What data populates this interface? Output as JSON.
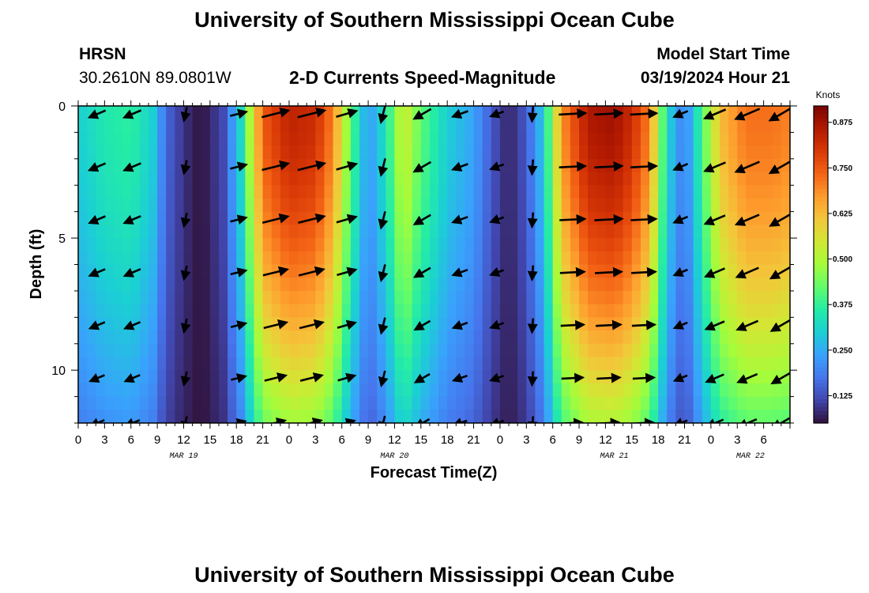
{
  "header": {
    "title_top": "University of Southern Mississippi Ocean Cube",
    "station": "HRSN",
    "coords": "30.2610N  89.0801W",
    "plot_title": "2-D Currents Speed-Magnitude",
    "model_start_label": "Model Start Time",
    "model_start_value": "03/19/2024 Hour 21",
    "title_bottom": "University of Southern Mississippi Ocean Cube"
  },
  "colors": {
    "ramp": [
      "#30123b",
      "#4145ab",
      "#4675ed",
      "#39a2fc",
      "#1bcfd4",
      "#24eca6",
      "#61fc6c",
      "#a4fc3b",
      "#d1e834",
      "#f3c63a",
      "#fe9b2d",
      "#f36315",
      "#d93806",
      "#b11901",
      "#7a0403"
    ]
  },
  "chart_data": {
    "type": "heatmap",
    "xlabel": "Forecast Time(Z)",
    "ylabel": "Depth (ft)",
    "colorbar_label": "Knots",
    "x_range_hours": [
      0,
      81
    ],
    "y_range": [
      0,
      12
    ],
    "y_ticks": [
      "0",
      "5",
      "10"
    ],
    "x_tick_labels": [
      "0",
      "3",
      "6",
      "9",
      "12",
      "15",
      "18",
      "21",
      "0",
      "3",
      "6",
      "9",
      "12",
      "15",
      "18",
      "21",
      "0",
      "3",
      "6",
      "9",
      "12",
      "15",
      "18",
      "21",
      "0",
      "3",
      "6"
    ],
    "month_labels": [
      {
        "label": "MAR 19",
        "hour": 12
      },
      {
        "label": "MAR 20",
        "hour": 36
      },
      {
        "label": "MAR 21",
        "hour": 61
      },
      {
        "label": "MAR 22",
        "hour": 76.5
      }
    ],
    "colorbar_ticks": [
      "0.125",
      "0.250",
      "0.375",
      "0.500",
      "0.625",
      "0.750",
      "0.875"
    ],
    "colorbar_range": [
      0.05,
      0.92
    ],
    "speed_profile": [
      {
        "hour": 0,
        "speed": 0.3
      },
      {
        "hour": 3,
        "speed": 0.35
      },
      {
        "hour": 6,
        "speed": 0.37
      },
      {
        "hour": 8.5,
        "speed": 0.3
      },
      {
        "hour": 10,
        "speed": 0.16
      },
      {
        "hour": 12,
        "speed": 0.09
      },
      {
        "hour": 14,
        "speed": 0.05
      },
      {
        "hour": 16.5,
        "speed": 0.12
      },
      {
        "hour": 18.5,
        "speed": 0.32
      },
      {
        "hour": 21,
        "speed": 0.75
      },
      {
        "hour": 24,
        "speed": 0.84
      },
      {
        "hour": 27,
        "speed": 0.82
      },
      {
        "hour": 29,
        "speed": 0.7
      },
      {
        "hour": 31,
        "speed": 0.42
      },
      {
        "hour": 33,
        "speed": 0.22
      },
      {
        "hour": 35,
        "speed": 0.34
      },
      {
        "hour": 37,
        "speed": 0.55
      },
      {
        "hour": 39,
        "speed": 0.42
      },
      {
        "hour": 42,
        "speed": 0.3
      },
      {
        "hour": 45,
        "speed": 0.24
      },
      {
        "hour": 47,
        "speed": 0.14
      },
      {
        "hour": 49,
        "speed": 0.07
      },
      {
        "hour": 51,
        "speed": 0.14
      },
      {
        "hour": 53,
        "speed": 0.3
      },
      {
        "hour": 55,
        "speed": 0.68
      },
      {
        "hour": 58,
        "speed": 0.86
      },
      {
        "hour": 61,
        "speed": 0.88
      },
      {
        "hour": 63,
        "speed": 0.82
      },
      {
        "hour": 65,
        "speed": 0.7
      },
      {
        "hour": 67,
        "speed": 0.32
      },
      {
        "hour": 69,
        "speed": 0.18
      },
      {
        "hour": 71,
        "speed": 0.4
      },
      {
        "hour": 73,
        "speed": 0.62
      },
      {
        "hour": 76,
        "speed": 0.72
      },
      {
        "hour": 79,
        "speed": 0.72
      },
      {
        "hour": 81,
        "speed": 0.7
      }
    ],
    "vector_hours": [
      2.2,
      6.2,
      12.2,
      18.2,
      22.4,
      26.5,
      30.5,
      34.7,
      39.2,
      43.5,
      47.7,
      51.7,
      56.2,
      60.3,
      64.3,
      68.6,
      72.5,
      76.2,
      80
    ],
    "vector_depths": [
      0.3,
      2.3,
      4.3,
      6.3,
      8.3,
      10.3,
      12
    ],
    "vector_directions_deg": [
      203,
      203,
      258,
      14,
      14,
      14,
      16,
      256,
      210,
      200,
      200,
      266,
      3,
      3,
      3,
      203,
      203,
      203,
      210
    ]
  }
}
